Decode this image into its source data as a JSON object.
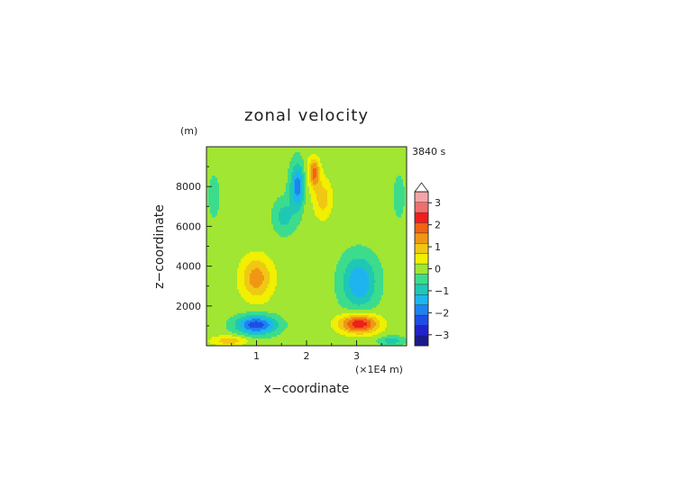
{
  "chart_data": {
    "type": "heatmap",
    "title": "zonal velocity",
    "xlabel": "x−coordinate",
    "ylabel": "z−coordinate",
    "y_unit": "(m)",
    "x_unit": "(×1E4 m)",
    "time_label": "3840 s",
    "xlim": [
      0,
      4
    ],
    "ylim": [
      0,
      10000
    ],
    "x_ticks": [
      1,
      2,
      3
    ],
    "y_ticks": [
      2000,
      4000,
      6000,
      8000
    ],
    "x_tick_labels": [
      "1",
      "2",
      "3"
    ],
    "y_tick_labels": [
      "2000",
      "4000",
      "6000",
      "8000"
    ],
    "colorbar": {
      "levels": [
        -3.5,
        -3,
        -2.5,
        -2,
        -1.5,
        -1,
        -0.5,
        0,
        0.5,
        1,
        1.5,
        2,
        2.5,
        3,
        3.5
      ],
      "colors": [
        "#1a1a8c",
        "#2222cc",
        "#1e4de6",
        "#1e82f0",
        "#1eb4f0",
        "#1ec8b4",
        "#3cdc8c",
        "#a0e632",
        "#f0f000",
        "#f0c814",
        "#f09614",
        "#f06414",
        "#f01e1e",
        "#f06e6e",
        "#f5a5a5"
      ],
      "tick_values": [
        3,
        2,
        1,
        0,
        -1,
        -2,
        -3
      ],
      "tick_labels": [
        "3",
        "2",
        "1",
        "0",
        "−1",
        "−2",
        "−3"
      ],
      "extend": "max"
    },
    "field": {
      "background": 0.2,
      "features": [
        {
          "x": 2.0,
          "z": 5000,
          "sx": 0.05,
          "sz": 6000,
          "amp": 0.2
        },
        {
          "x": 1.82,
          "z": 8000,
          "sx": 0.1,
          "sz": 800,
          "amp": -2.0
        },
        {
          "x": 1.55,
          "z": 6500,
          "sx": 0.15,
          "sz": 600,
          "amp": -0.9
        },
        {
          "x": 2.15,
          "z": 8700,
          "sx": 0.08,
          "sz": 500,
          "amp": 2.0
        },
        {
          "x": 2.32,
          "z": 7400,
          "sx": 0.13,
          "sz": 700,
          "amp": 1.1
        },
        {
          "x": 1.0,
          "z": 3400,
          "sx": 0.22,
          "sz": 750,
          "amp": 1.6
        },
        {
          "x": 3.05,
          "z": 3200,
          "sx": 0.24,
          "sz": 900,
          "amp": -1.7
        },
        {
          "x": 1.0,
          "z": 1050,
          "sx": 0.27,
          "sz": 320,
          "amp": -2.6
        },
        {
          "x": 3.05,
          "z": 1100,
          "sx": 0.27,
          "sz": 330,
          "amp": 2.8
        },
        {
          "x": 0.45,
          "z": 250,
          "sx": 0.25,
          "sz": 180,
          "amp": 1.1
        },
        {
          "x": 3.7,
          "z": 250,
          "sx": 0.18,
          "sz": 160,
          "amp": -1.0
        },
        {
          "x": 0.15,
          "z": 7500,
          "sx": 0.12,
          "sz": 1200,
          "amp": -0.3
        },
        {
          "x": 3.85,
          "z": 7500,
          "sx": 0.12,
          "sz": 1200,
          "amp": -0.3
        }
      ]
    }
  }
}
